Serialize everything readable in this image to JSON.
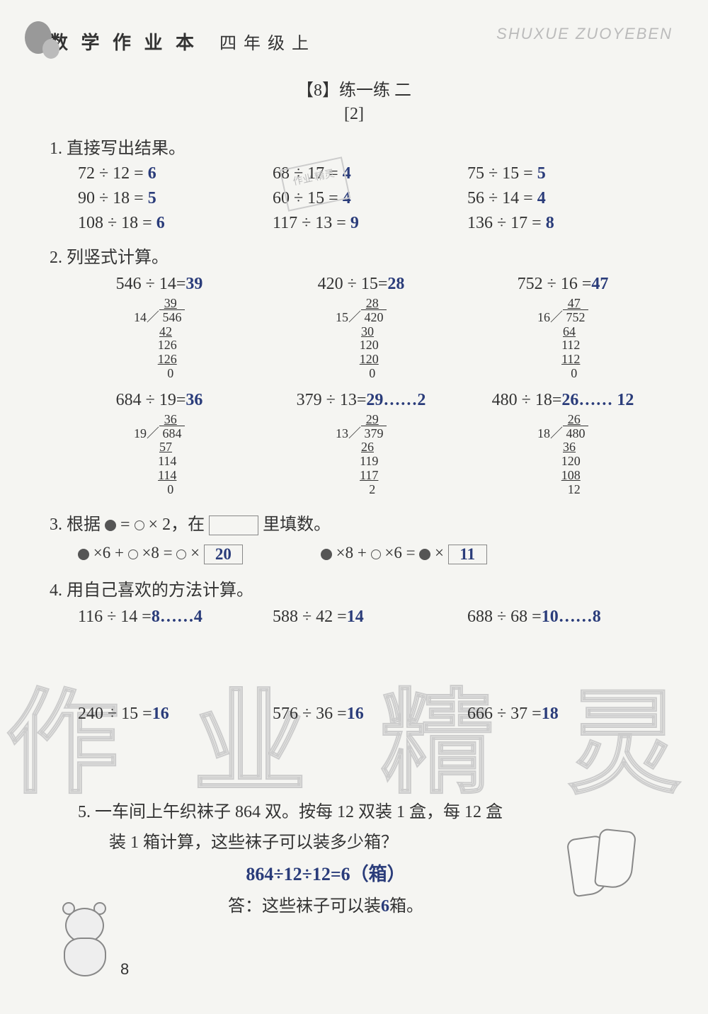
{
  "header": {
    "title": "数 学 作 业 本",
    "grade": "四 年 级 上",
    "pinyin": "SHUXUE ZUOYEBEN"
  },
  "section": {
    "title": "【8】练一练 二",
    "sub": "[2]"
  },
  "stamp": "作业\n精灵",
  "q1": {
    "label": "1.  直接写出结果。",
    "rows": [
      [
        {
          "expr": "72 ÷ 12 =",
          "ans": "6"
        },
        {
          "expr": "68 ÷ 17 =",
          "ans": "4"
        },
        {
          "expr": "75 ÷ 15 =",
          "ans": "5"
        }
      ],
      [
        {
          "expr": "90 ÷ 18 =",
          "ans": "5"
        },
        {
          "expr": "60 ÷ 15 =",
          "ans": "4"
        },
        {
          "expr": "56 ÷ 14 =",
          "ans": "4"
        }
      ],
      [
        {
          "expr": "108 ÷ 18 =",
          "ans": "6"
        },
        {
          "expr": "117 ÷ 13 =",
          "ans": "9"
        },
        {
          "expr": "136 ÷ 17 =",
          "ans": "8"
        }
      ]
    ]
  },
  "q2": {
    "label": "2.  列竖式计算。",
    "row1": [
      {
        "title": "546 ÷ 14=",
        "ans": "39",
        "divisor": "14",
        "dividend": "546",
        "quotient": "39",
        "lines": [
          "42",
          "126",
          "126",
          "0"
        ]
      },
      {
        "title": "420 ÷ 15=",
        "ans": "28",
        "divisor": "15",
        "dividend": "420",
        "quotient": "28",
        "lines": [
          "30",
          "120",
          "120",
          "0"
        ]
      },
      {
        "title": "752 ÷ 16 =",
        "ans": "47",
        "divisor": "16",
        "dividend": "752",
        "quotient": "47",
        "lines": [
          "64",
          "112",
          "112",
          "0"
        ]
      }
    ],
    "row2": [
      {
        "title": "684 ÷ 19=",
        "ans": "36",
        "divisor": "19",
        "dividend": "684",
        "quotient": "36",
        "lines": [
          "57",
          "114",
          "114",
          "0"
        ]
      },
      {
        "title": "379 ÷ 13=",
        "ans": "29……2",
        "divisor": "13",
        "dividend": "379",
        "quotient": "29",
        "lines": [
          "26",
          "119",
          "117",
          "2"
        ]
      },
      {
        "title": "480 ÷ 18=",
        "ans": "26…… 12",
        "divisor": "18",
        "dividend": "480",
        "quotient": "26",
        "lines": [
          "36",
          "120",
          "108",
          "12"
        ]
      }
    ]
  },
  "q3": {
    "label_a": "3.  根据",
    "label_b": " = ",
    "label_c": " × 2，在",
    "label_d": "里填数。",
    "eq1": {
      "l": " ×6 + ",
      " m": " ×8 = ",
      " r": " × ",
      "ans": "20"
    },
    "eq2": {
      "l": " ×8 + ",
      " m": " ×6 = ",
      " r": " × ",
      "ans": "11"
    }
  },
  "q4": {
    "label": "4.  用自己喜欢的方法计算。",
    "rows": [
      [
        {
          "expr": "116 ÷ 14 =",
          "ans": "8……4"
        },
        {
          "expr": "588 ÷ 42 =",
          "ans": "14"
        },
        {
          "expr": "688 ÷ 68 =",
          "ans": "10……8"
        }
      ],
      [
        {
          "expr": "240 ÷ 15 =",
          "ans": "16"
        },
        {
          "expr": "576 ÷ 36 =",
          "ans": "16"
        },
        {
          "expr": "666 ÷ 37 =",
          "ans": "18"
        }
      ]
    ]
  },
  "q5": {
    "line1": "5.  一车间上午织袜子 864 双。按每 12 双装 1 盒，每 12 盒",
    "line2": "装 1 箱计算，这些袜子可以装多少箱？",
    "eq": "864÷12÷12=6（箱）",
    "ans_prefix": "答：这些袜子可以装",
    "ans_val": "6",
    "ans_suffix": "箱。"
  },
  "watermark": "作 业 精 灵",
  "pagenum": "8"
}
